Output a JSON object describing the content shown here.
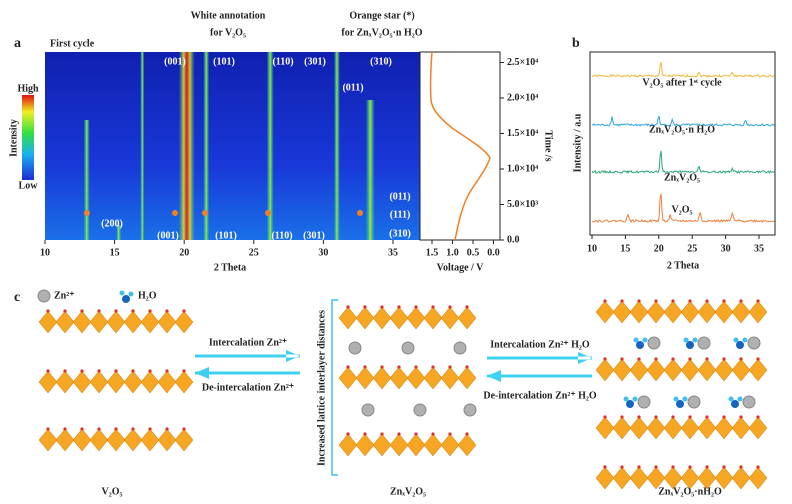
{
  "panel_a": {
    "label": "a",
    "title": "First cycle",
    "annotation_white": [
      "White annotation",
      "for V₂O₅"
    ],
    "annotation_orange": [
      "Orange star (*)",
      "for ZnₓV₂O₅·n H₂O"
    ],
    "colorbar": {
      "title": "Intensity",
      "high": "High",
      "low": "Low"
    },
    "peaks_top": [
      "(001)",
      "(101)",
      "(110)",
      "(301)",
      "(310)",
      "(011)"
    ],
    "peaks_bottom": [
      "(200)",
      "(001)",
      "(101)",
      "(110)",
      "(301)",
      "(011)",
      "(111)",
      "(310)"
    ],
    "xticks": [
      "10",
      "15",
      "20",
      "25",
      "30",
      "35"
    ],
    "xlabel": "2 Theta",
    "voltage_ticks": [
      "1.5",
      "1.0",
      "0.5",
      "0.0"
    ],
    "voltage_label": "Voltage / V",
    "time_ticks": [
      "0.0",
      "5.0×10³",
      "1.0×10⁴",
      "1.5×10⁴",
      "2.0×10⁴",
      "2.5×10⁴"
    ],
    "time_label": "Time /s"
  },
  "panel_b": {
    "label": "b",
    "ylabel": "Intensity / a.u",
    "traces": [
      "V₂O₅ after 1ˢᵗ cycle",
      "ZnₓV₂O₅·n H₂O",
      "ZnₓV₂O₅",
      "V₂O₅"
    ],
    "xticks": [
      "10",
      "15",
      "20",
      "25",
      "30",
      "35"
    ],
    "xlabel": "2 Theta"
  },
  "panel_c": {
    "label": "c",
    "legend": [
      "Zn²⁺",
      "H₂O"
    ],
    "arrows": [
      "Intercalation Zn²⁺",
      "De-intercalation Zn²⁺",
      "Intercalation Zn²⁺ H₂O",
      "De-intercalation Zn²⁺ H₂O"
    ],
    "bracket": "Increased lattice interlayer distances",
    "structures": [
      "V₂O₅",
      "ZnₓV₂O₅",
      "ZnₓV₂O₅·nH₂O"
    ]
  }
}
